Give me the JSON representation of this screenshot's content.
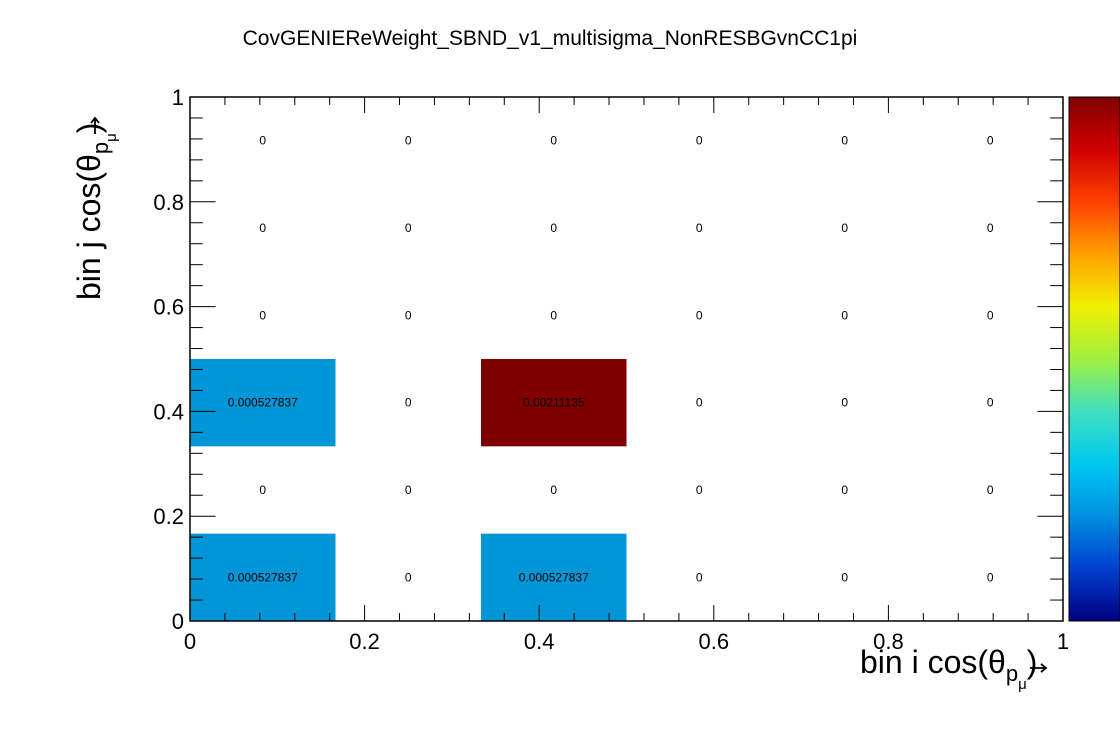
{
  "chart_data": {
    "type": "heatmap",
    "title": "CovGENIEReWeight_SBND_v1_multisigma_NonRESBGvnCC1pi",
    "xlabel": "bin i cos(θ",
    "xlabel_sub": "p",
    "xlabel_subsub": "μ",
    "xlabel_close": ")",
    "ylabel": "bin j cos(θ",
    "ylabel_sub": "p",
    "ylabel_subsub": "μ",
    "ylabel_close": ")",
    "xlim": [
      0,
      1
    ],
    "ylim": [
      0,
      1
    ],
    "x_ticks": [
      "0",
      "0.2",
      "0.4",
      "0.6",
      "0.8",
      "1"
    ],
    "y_ticks": [
      "0",
      "0.2",
      "0.4",
      "0.6",
      "0.8",
      "1"
    ],
    "nx": 6,
    "ny": 6,
    "z_min": 0,
    "z_max": 0.00211135,
    "values": [
      [
        0.000527837,
        0,
        0.000527837,
        0,
        0,
        0
      ],
      [
        0,
        0,
        0,
        0,
        0,
        0
      ],
      [
        0.000527837,
        0,
        0.00211135,
        0,
        0,
        0
      ],
      [
        0,
        0,
        0,
        0,
        0,
        0
      ],
      [
        0,
        0,
        0,
        0,
        0,
        0
      ],
      [
        0,
        0,
        0,
        0,
        0,
        0
      ]
    ],
    "labels": [
      [
        "0.000527837",
        "0",
        "0.000527837",
        "0",
        "0",
        "0"
      ],
      [
        "0",
        "0",
        "0",
        "0",
        "0",
        "0"
      ],
      [
        "0.000527837",
        "0",
        "0.00211135",
        "0",
        "0",
        "0"
      ],
      [
        "0",
        "0",
        "0",
        "0",
        "0",
        "0"
      ],
      [
        "0",
        "0",
        "0",
        "0",
        "0",
        "0"
      ],
      [
        "0",
        "0",
        "0",
        "0",
        "0",
        "0"
      ]
    ],
    "colors": {
      "low_cell": "#0096d8",
      "high_cell": "#800000"
    },
    "palette": [
      "#000080",
      "#0040d0",
      "#0090e0",
      "#00c8f0",
      "#40e0c0",
      "#a0f040",
      "#f0f000",
      "#ffa000",
      "#ff4000",
      "#d00000",
      "#800000"
    ],
    "grid": false,
    "legend": "colorbar-right"
  }
}
